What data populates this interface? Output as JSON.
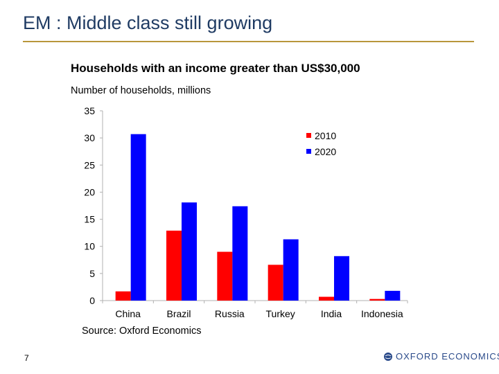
{
  "slide": {
    "title": "EM : Middle class still growing",
    "page_number": "7",
    "logo_text": "OXFORD ECONOMICS"
  },
  "colors": {
    "series_2010": "#ff0000",
    "series_2020": "#0000ff",
    "title_color": "#1f3b63",
    "rule_color": "#b8963a",
    "axis_color": "#b0b0b0"
  },
  "chart_data": {
    "type": "bar",
    "title": "Households with an income greater than US$30,000",
    "ylabel": "Number of households, millions",
    "xlabel": "",
    "source": "Source: Oxford Economics",
    "categories": [
      "China",
      "Brazil",
      "Russia",
      "Turkey",
      "India",
      "Indonesia"
    ],
    "series": [
      {
        "name": "2010",
        "values": [
          1.7,
          12.9,
          9.0,
          6.6,
          0.7,
          0.3
        ]
      },
      {
        "name": "2020",
        "values": [
          30.7,
          18.1,
          17.4,
          11.3,
          8.2,
          1.8
        ]
      }
    ],
    "ylim": [
      0,
      35
    ],
    "yticks": [
      0,
      5,
      10,
      15,
      20,
      25,
      30,
      35
    ],
    "grid": false,
    "legend": "top-right"
  }
}
